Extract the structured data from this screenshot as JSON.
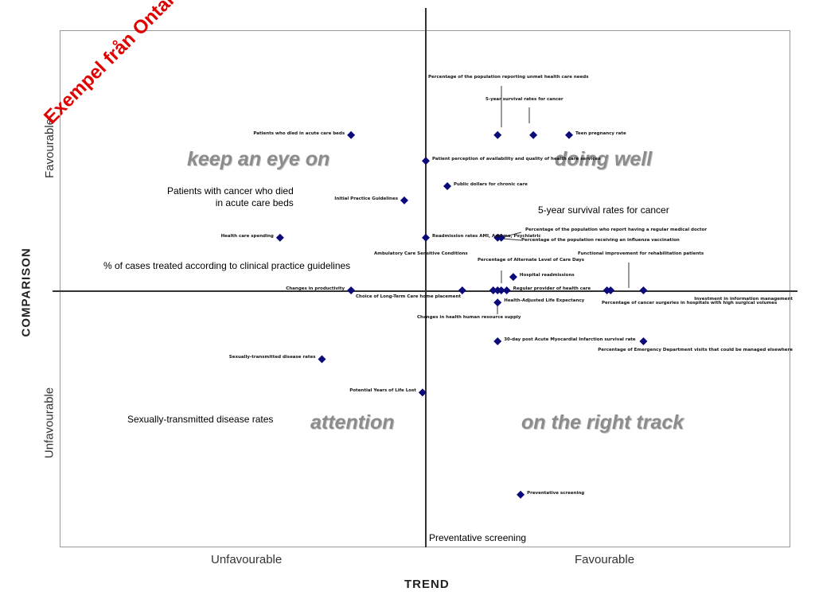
{
  "chart_data": {
    "type": "scatter",
    "xlabel": "TREND",
    "ylabel": "COMPARISON",
    "x_ticks": [
      "Unfavourable",
      "Favourable"
    ],
    "y_ticks": [
      "Favourable",
      "Unfavourable"
    ],
    "xlim": [
      -1,
      1
    ],
    "ylim": [
      -1,
      1
    ],
    "quadrants": {
      "top_left": "keep an eye on",
      "top_right": "doing well",
      "bottom_left": "attention",
      "bottom_right": "on the right track"
    },
    "points": [
      {
        "x": -0.205,
        "y": 0.604,
        "label": "Patients who died in acute care beds"
      },
      {
        "x": 0.197,
        "y": 0.604,
        "label": ""
      },
      {
        "x": 0.295,
        "y": 0.604,
        "label": ""
      },
      {
        "x": 0.393,
        "y": 0.604,
        "label": "Teen pregnancy rate"
      },
      {
        "x": 0.0,
        "y": 0.504,
        "label": "Patient perception of availability and quality of health care services"
      },
      {
        "x": 0.059,
        "y": 0.406,
        "label": "Public dollars for chronic care"
      },
      {
        "x": -0.059,
        "y": 0.351,
        "label": "Initial Practice Guidelines"
      },
      {
        "x": -0.4,
        "y": 0.207,
        "label": "Health care spending"
      },
      {
        "x": 0.0,
        "y": 0.207,
        "label": "Readmission rates AMI, Asthma, Psychiatric"
      },
      {
        "x": 0.197,
        "y": 0.207,
        "label": ""
      },
      {
        "x": 0.207,
        "y": 0.207,
        "label": ""
      },
      {
        "x": 0.24,
        "y": 0.055,
        "label": "Hospital readmissions"
      },
      {
        "x": -0.205,
        "y": 0.003,
        "label": "Changes in productivity"
      },
      {
        "x": 0.1,
        "y": 0.003,
        "label": ""
      },
      {
        "x": 0.185,
        "y": 0.003,
        "label": ""
      },
      {
        "x": 0.197,
        "y": 0.003,
        "label": ""
      },
      {
        "x": 0.207,
        "y": 0.003,
        "label": ""
      },
      {
        "x": 0.222,
        "y": 0.003,
        "label": "Regular provider of health care"
      },
      {
        "x": 0.497,
        "y": 0.003,
        "label": ""
      },
      {
        "x": 0.507,
        "y": 0.003,
        "label": ""
      },
      {
        "x": 0.597,
        "y": 0.003,
        "label": "Investment in information management"
      },
      {
        "x": 0.197,
        "y": -0.044,
        "label": "Health-Adjusted Life Expectancy"
      },
      {
        "x": 0.197,
        "y": -0.194,
        "label": "30-day post Acute Myocardial Infarction survival rate"
      },
      {
        "x": 0.597,
        "y": -0.194,
        "label": "Percentage of Emergency Department visits that could be managed elsewhere"
      },
      {
        "x": -0.285,
        "y": -0.263,
        "label": "Sexually-transmitted disease rates"
      },
      {
        "x": -0.009,
        "y": -0.392,
        "label": "Potential Years of Life Lost"
      },
      {
        "x": 0.26,
        "y": -0.787,
        "label": "Preventative screening"
      }
    ],
    "annotations": [
      "Percentage of the population reporting unmet health care needs",
      "5-year survival rates for cancer",
      "Percentage of the population who report having a regular medical doctor",
      "Percentage of the population receiving an influenza vaccination",
      "Functional improvement for rehabilitation patients",
      "Percentage of Alternate Level of Care Days",
      "Choice of Long-Term Care home placement",
      "Changes in health human resource supply",
      "Percentage of cancer surgeries in hospitals with high surgical volumes",
      "Ambulatory Care Sensitive Conditions"
    ],
    "grid": false,
    "legend": "none"
  },
  "overlay": {
    "title": "Exempel från Ontario, Canada",
    "callouts": {
      "died_in_acute": "Patients with cancer who died\nin acute care beds",
      "survival": "5-year survival rates for cancer",
      "guidelines": "% of cases treated according to clinical practice guidelines",
      "std": "Sexually-transmitted disease rates",
      "screening": "Preventative screening"
    }
  },
  "colors": {
    "marker": "#0a0a7a",
    "overlay_title": "#e00000"
  }
}
